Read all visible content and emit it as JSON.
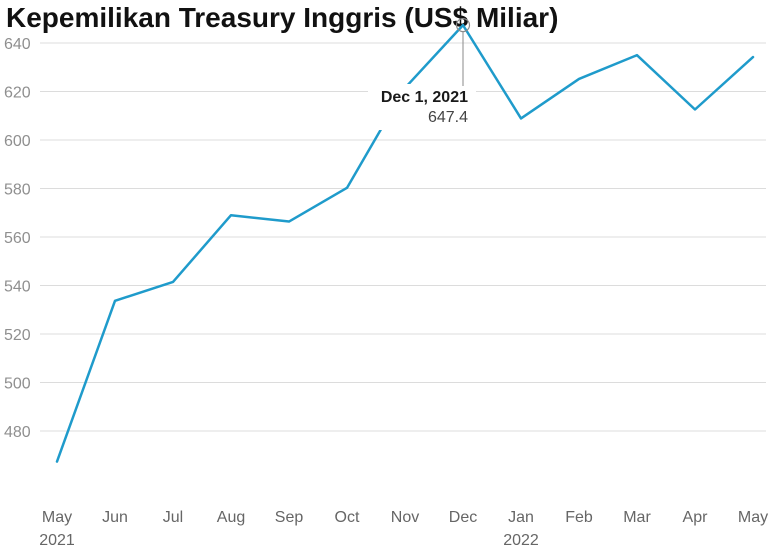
{
  "chart_data": {
    "type": "line",
    "title": "Kepemilikan Treasury Inggris (US$ Miliar)",
    "xlabel": "",
    "ylabel": "",
    "x": [
      "May 2021",
      "Jun 2021",
      "Jul 2021",
      "Aug 2021",
      "Sep 2021",
      "Oct 2021",
      "Nov 2021",
      "Dec 2021",
      "Jan 2022",
      "Feb 2022",
      "Mar 2022",
      "Apr 2022",
      "May 2022"
    ],
    "x_tick_labels": [
      {
        "label": "May",
        "year": "2021"
      },
      {
        "label": "Jun",
        "year": ""
      },
      {
        "label": "Jul",
        "year": ""
      },
      {
        "label": "Aug",
        "year": ""
      },
      {
        "label": "Sep",
        "year": ""
      },
      {
        "label": "Oct",
        "year": ""
      },
      {
        "label": "Nov",
        "year": ""
      },
      {
        "label": "Dec",
        "year": ""
      },
      {
        "label": "Jan",
        "year": "2022"
      },
      {
        "label": "Feb",
        "year": ""
      },
      {
        "label": "Mar",
        "year": ""
      },
      {
        "label": "Apr",
        "year": ""
      },
      {
        "label": "May",
        "year": ""
      }
    ],
    "series": [
      {
        "values": [
          467.4,
          533.7,
          541.5,
          569.0,
          566.4,
          580.3,
          621.5,
          647.4,
          608.9,
          625.2,
          635.0,
          612.6,
          634.2
        ],
        "color": "#1f9bcb"
      }
    ],
    "yticks": [
      480,
      500,
      520,
      540,
      560,
      580,
      600,
      620,
      640
    ],
    "ylim": [
      466,
      652
    ],
    "grid": true,
    "legend": "none",
    "tooltip": {
      "date": "Dec 1, 2021",
      "value": "647.4",
      "index": 7
    }
  }
}
